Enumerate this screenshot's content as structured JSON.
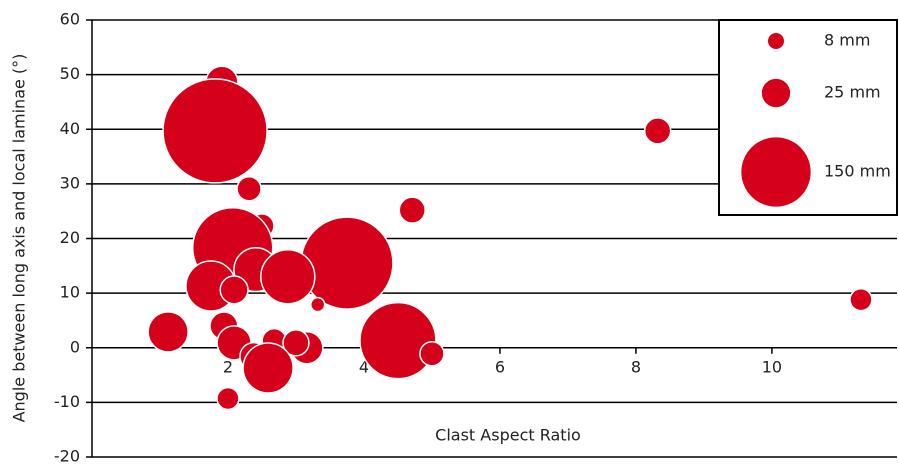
{
  "chart_data": {
    "type": "bubble",
    "x_label": "Clast Aspect Ratio",
    "y_label": "Angle between long axis and local laminae (°)",
    "color": "#d50019",
    "x": [
      1.91,
      2.19,
      1.81,
      8.32,
      2.31,
      4.71,
      2.5,
      2.07,
      3.75,
      2.41,
      2.88,
      1.75,
      2.09,
      3.32,
      11.31,
      1.12,
      1.94,
      2.09,
      2.68,
      3.16,
      3.0,
      2.38,
      2.59,
      4.5,
      5.0,
      2.0
    ],
    "values": [
      48.6,
      44.6,
      39.7,
      39.7,
      29.1,
      25.2,
      22.3,
      18.3,
      15.5,
      14.3,
      13.0,
      11.3,
      10.6,
      7.9,
      8.8,
      2.9,
      4.0,
      0.9,
      1.3,
      0,
      0.9,
      -1.6,
      -3.7,
      1.3,
      -1.1,
      -9.3
    ],
    "sizes": [
      32,
      18,
      338,
      21,
      18,
      21,
      18,
      200,
      264,
      60,
      91,
      78,
      24,
      6,
      15,
      50,
      24,
      36,
      18,
      32,
      21,
      24,
      78,
      180,
      18,
      15
    ],
    "xlim": [
      0,
      11.84
    ],
    "ylim": [
      -20,
      60
    ],
    "xticks": [
      2,
      4,
      6,
      8,
      10
    ],
    "yticks": [
      -20,
      -10,
      0,
      10,
      20,
      30,
      40,
      50,
      60
    ],
    "grid": true,
    "legend": {
      "position": "upper right",
      "items": [
        {
          "size": 8,
          "label": "8 mm"
        },
        {
          "size": 25,
          "label": "25 mm"
        },
        {
          "size": 150,
          "label": "150 mm"
        }
      ]
    }
  }
}
